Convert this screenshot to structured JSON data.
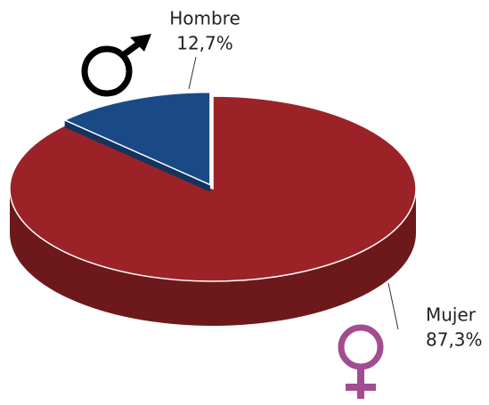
{
  "chart_data": {
    "type": "pie",
    "categories": [
      "Hombre",
      "Mujer"
    ],
    "values": [
      12.7,
      87.3
    ],
    "value_labels": [
      "12,7%",
      "87,3%"
    ],
    "colors": [
      "#1a4a86",
      "#9b2328"
    ]
  }
}
